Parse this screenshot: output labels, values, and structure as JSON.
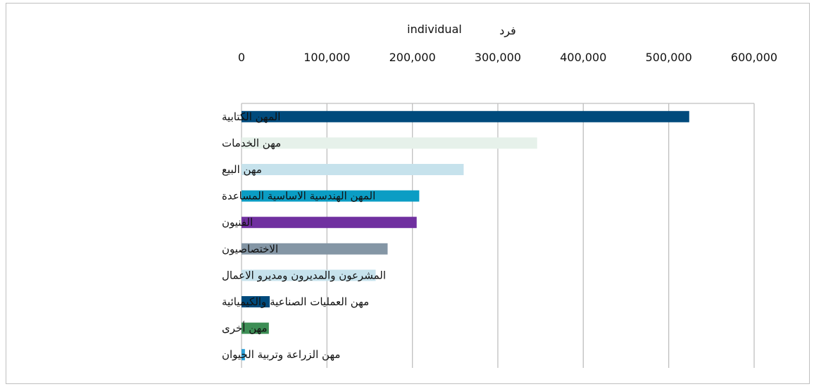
{
  "chart_data": {
    "type": "bar",
    "orientation": "horizontal",
    "unit_label_ar": "فرد",
    "unit_label_en": "individual",
    "xlim": [
      0,
      600000
    ],
    "x_ticks": [
      "0",
      "100,000",
      "200,000",
      "300,000",
      "400,000",
      "500,000",
      "600,000"
    ],
    "x_axis_position": "top",
    "grid": true,
    "categories": [
      "المهن الكتابية",
      "مهن الخدمات",
      "مهن البيع",
      "المهن الهندسية الاساسية المساعدة",
      "الفنيون",
      "الاختصاصيون",
      "المشرعون والمديرون ومديرو الاعمال",
      "مهن العمليات الصناعية والكيميائية",
      "مهن أخرى",
      "مهن الزراعة وتربية الحيوان"
    ],
    "values": [
      524000,
      346000,
      260000,
      208000,
      205000,
      171000,
      157000,
      33000,
      32000,
      4000
    ],
    "colors": [
      "#004a7c",
      "#e6f1ea",
      "#c6e2ec",
      "#0b9dc4",
      "#7030a0",
      "#8496a5",
      "#c6e2ec",
      "#004a7c",
      "#3d8e55",
      "#2a9fd6"
    ]
  }
}
